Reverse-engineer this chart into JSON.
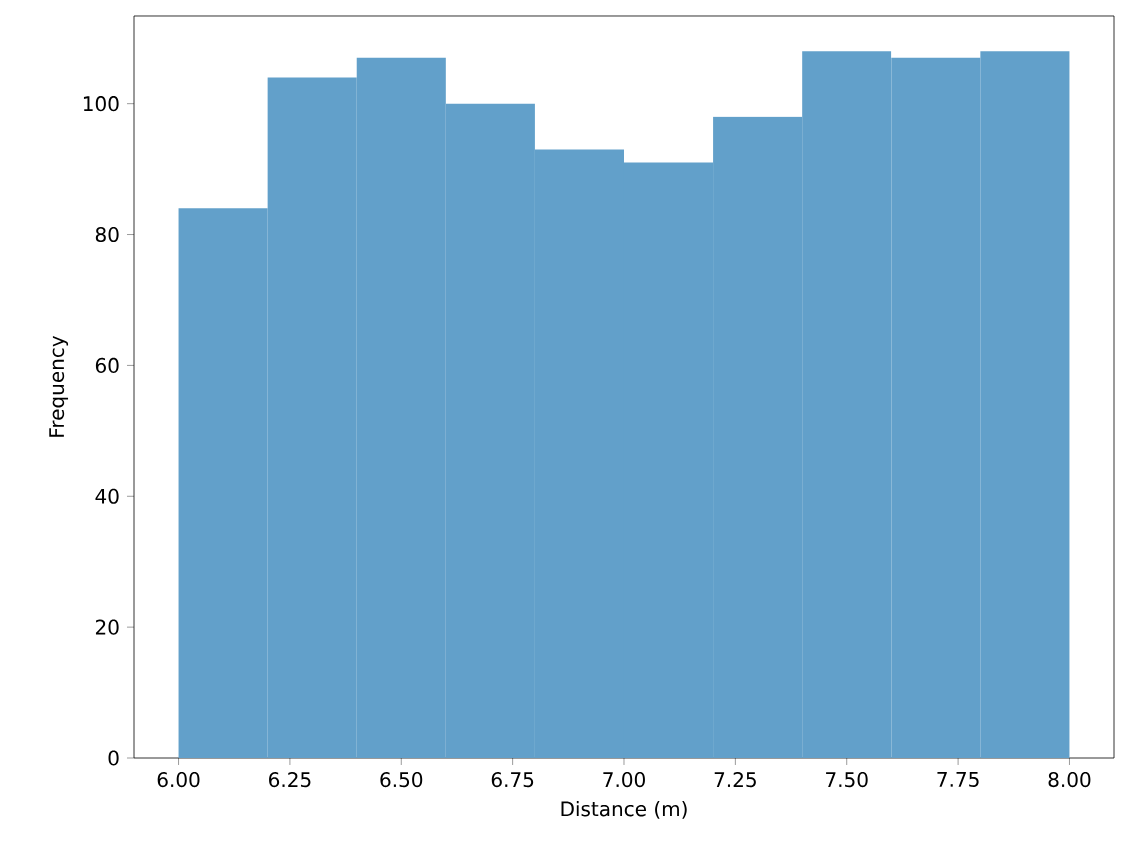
{
  "chart_data": {
    "type": "histogram",
    "xlabel": "Distance (m)",
    "ylabel": "Frequency",
    "bins": [
      6.0,
      6.2,
      6.4,
      6.6,
      6.8,
      7.0,
      7.2,
      7.4,
      7.6,
      7.8,
      8.0
    ],
    "values": [
      84,
      104,
      107,
      100,
      93,
      91,
      98,
      108,
      107,
      108
    ],
    "color": "#62a0ca",
    "xlim": [
      5.9,
      8.1
    ],
    "ylim": [
      0,
      113.4
    ],
    "xticks": [
      {
        "value": 6.0,
        "label": "6.00"
      },
      {
        "value": 6.25,
        "label": "6.25"
      },
      {
        "value": 6.5,
        "label": "6.50"
      },
      {
        "value": 6.75,
        "label": "6.75"
      },
      {
        "value": 7.0,
        "label": "7.00"
      },
      {
        "value": 7.25,
        "label": "7.25"
      },
      {
        "value": 7.5,
        "label": "7.50"
      },
      {
        "value": 7.75,
        "label": "7.75"
      },
      {
        "value": 8.0,
        "label": "8.00"
      }
    ],
    "yticks": [
      0,
      20,
      40,
      60,
      80,
      100
    ],
    "grid": false
  }
}
